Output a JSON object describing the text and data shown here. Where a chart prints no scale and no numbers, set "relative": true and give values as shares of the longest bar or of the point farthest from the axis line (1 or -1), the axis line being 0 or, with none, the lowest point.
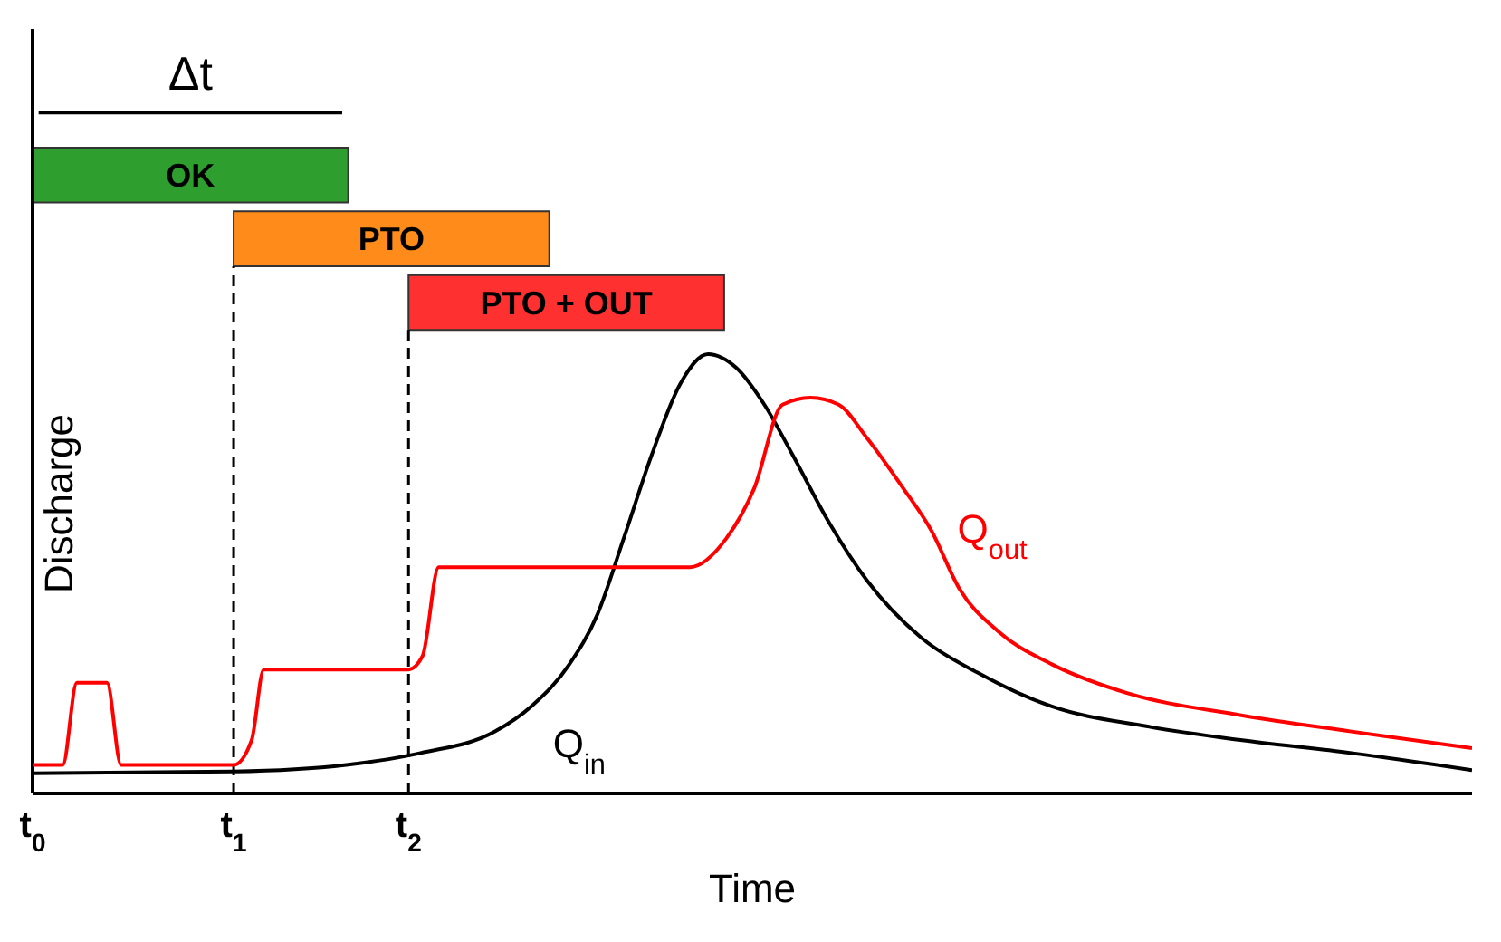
{
  "chart_data": {
    "type": "line",
    "relative": true,
    "xlabel": "Time",
    "ylabel": "Discharge",
    "xlim": [
      0,
      7.16
    ],
    "xticks": [
      {
        "value": 0,
        "label": "t$_{0}$"
      },
      {
        "value": 1,
        "label": "t$_{1}$"
      },
      {
        "value": 1.87,
        "label": "t$_{2}$"
      }
    ],
    "series": [
      {
        "name": "Q$_{in}$",
        "color": "#000000",
        "x": [
          0,
          1,
          1.56,
          1.93,
          2.3,
          2.48,
          2.67,
          2.81,
          2.94,
          3.08,
          3.22,
          3.36,
          3.5,
          3.64,
          3.78,
          3.96,
          4.15,
          4.43,
          4.7,
          5.07,
          5.54,
          6.0,
          6.56,
          7.16
        ],
        "values": [
          0.046,
          0.05,
          0.065,
          0.092,
          0.141,
          0.198,
          0.294,
          0.408,
          0.58,
          0.771,
          0.931,
          1,
          0.969,
          0.885,
          0.771,
          0.618,
          0.485,
          0.351,
          0.275,
          0.198,
          0.153,
          0.122,
          0.092,
          0.053
        ]
      },
      {
        "name": "Q$_{out}$",
        "color": "#ff0000",
        "x": [
          0,
          0.15,
          0.22,
          0.37,
          0.44,
          1,
          1.09,
          1.15,
          1.87,
          1.94,
          2.02,
          3.27,
          3.45,
          3.59,
          3.73,
          3.87,
          4.01,
          4.15,
          4.33,
          4.47,
          4.61,
          4.8,
          5.07,
          5.44,
          6.0,
          6.56,
          7.16
        ],
        "values": [
          0.065,
          0.065,
          0.252,
          0.252,
          0.065,
          0.065,
          0.122,
          0.282,
          0.282,
          0.313,
          0.515,
          0.515,
          0.58,
          0.695,
          0.885,
          0.901,
          0.885,
          0.809,
          0.695,
          0.599,
          0.466,
          0.37,
          0.294,
          0.229,
          0.179,
          0.141,
          0.103
        ]
      }
    ],
    "line_style": "solid",
    "ref_lines": [
      {
        "axis": "x",
        "value": 1,
        "line_style": "dashed",
        "color": "#000000"
      },
      {
        "axis": "x",
        "value": 1.87,
        "line_style": "dashed",
        "color": "#000000"
      }
    ],
    "annotations": [
      "Δt",
      "OK",
      "PTO",
      "PTO + OUT"
    ]
  }
}
